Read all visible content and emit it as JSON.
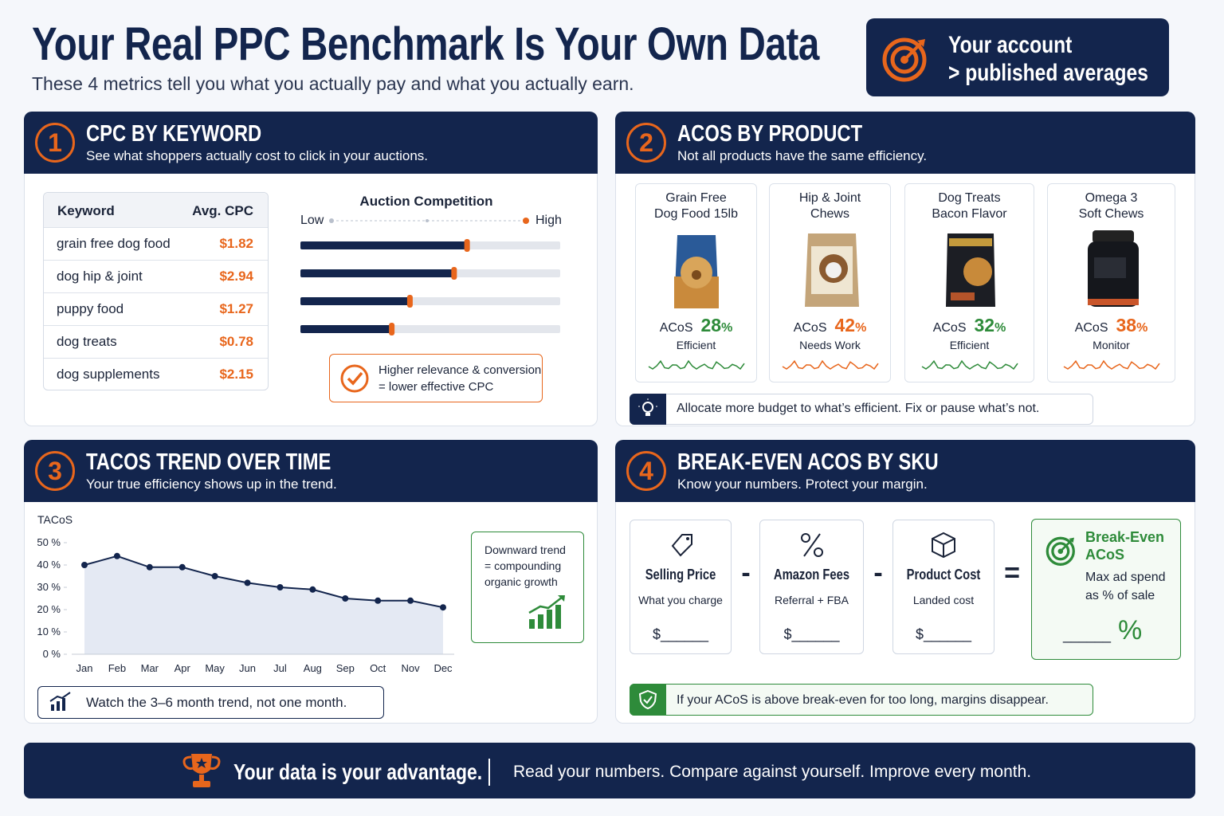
{
  "header": {
    "title": "Your Real PPC Benchmark Is Your Own Data",
    "subtitle": "These 4 metrics tell you what you actually pay and what you actually earn.",
    "badge": {
      "line1": "Your account",
      "line2": "> published averages"
    }
  },
  "sections": [
    {
      "number": "1",
      "title": "CPC BY KEYWORD",
      "subtitle": "See what shoppers actually cost to click in your auctions.",
      "table": {
        "columns": [
          "Keyword",
          "Avg. CPC"
        ],
        "rows": [
          [
            "grain free dog food",
            "$1.82"
          ],
          [
            "dog hip & joint",
            "$2.94"
          ],
          [
            "puppy food",
            "$1.27"
          ],
          [
            "dog treats",
            "$0.78"
          ],
          [
            "dog supplements",
            "$2.15"
          ]
        ]
      },
      "competition": {
        "title": "Auction Competition",
        "low": "Low",
        "high": "High",
        "values": [
          64,
          59,
          42,
          35
        ]
      },
      "note": [
        "Higher relevance & conversion",
        "= lower effective CPC"
      ]
    },
    {
      "number": "2",
      "title": "ACOS BY PRODUCT",
      "subtitle": "Not all products have the same efficiency.",
      "products": [
        {
          "name": [
            "Grain Free",
            "Dog Food 15lb"
          ],
          "metric": "ACoS",
          "acos": 28,
          "unit": "%",
          "status": "Efficient",
          "color": "#2e8b3a"
        },
        {
          "name": [
            "Hip & Joint",
            "Chews"
          ],
          "metric": "ACoS",
          "acos": 42,
          "unit": "%",
          "status": "Needs Work",
          "color": "#e8661c"
        },
        {
          "name": [
            "Dog Treats",
            "Bacon Flavor"
          ],
          "metric": "ACoS",
          "acos": 32,
          "unit": "%",
          "status": "Efficient",
          "color": "#2e8b3a"
        },
        {
          "name": [
            "Omega 3",
            "Soft Chews"
          ],
          "metric": "ACoS",
          "acos": 38,
          "unit": "%",
          "status": "Monitor",
          "color": "#e8661c"
        }
      ],
      "tip": "Allocate more budget to what’s efficient. Fix or pause what’s not."
    },
    {
      "number": "3",
      "title": "TACOS TREND OVER TIME",
      "subtitle": "Your true efficiency shows up in the trend.",
      "chart": {
        "type": "line",
        "y_label": "TACoS",
        "categories": [
          "Jan",
          "Feb",
          "Mar",
          "Apr",
          "May",
          "Jun",
          "Jul",
          "Aug",
          "Sep",
          "Oct",
          "Nov",
          "Dec"
        ],
        "values": [
          40,
          44,
          39,
          39,
          35,
          32,
          30,
          29,
          25,
          24,
          24,
          21
        ],
        "color": "#13254d",
        "ylim": [
          0,
          50
        ],
        "yticks": [
          {
            "value": 0,
            "label": "0 %"
          },
          {
            "value": 10,
            "label": "10 %"
          },
          {
            "value": 20,
            "label": "20 %"
          },
          {
            "value": 30,
            "label": "30 %"
          },
          {
            "value": 40,
            "label": "40 %"
          },
          {
            "value": 50,
            "label": "50 %"
          }
        ]
      },
      "callout": [
        "Downward trend",
        "= compounding",
        "organic growth"
      ],
      "tip": "Watch the 3–6 month trend, not one month."
    },
    {
      "number": "4",
      "title": "BREAK-EVEN ACOS BY SKU",
      "subtitle": "Know your numbers. Protect your margin.",
      "items": [
        {
          "title": "Selling Price",
          "subtitle": "What you charge",
          "blank": "$______"
        },
        {
          "title": "Amazon Fees",
          "subtitle": "Referral + FBA",
          "blank": "$______"
        },
        {
          "title": "Product Cost",
          "subtitle": "Landed cost",
          "blank": "$______"
        }
      ],
      "operators": [
        "-",
        "-",
        "="
      ],
      "result": {
        "title": [
          "Break-Even",
          "ACoS"
        ],
        "text": [
          "Max ad spend",
          "as % of sale"
        ],
        "blank": "______",
        "unit": "%"
      },
      "tip": "If your ACoS is above break-even for too long, margins disappear."
    }
  ],
  "footer": {
    "headline": "Your data is your advantage.",
    "text": "Read your numbers.  Compare against yourself. Improve every month."
  }
}
